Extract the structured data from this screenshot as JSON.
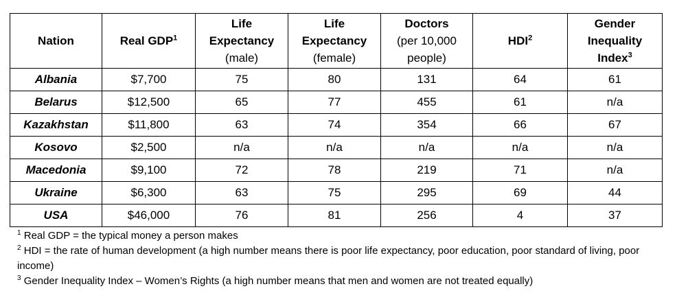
{
  "headers": {
    "nation": "Nation",
    "gdp": "Real GDP",
    "gdp_sup": "1",
    "life_male": [
      "Life",
      "Expectancy",
      "(male)"
    ],
    "life_female": [
      "Life",
      "Expectancy",
      "(female)"
    ],
    "doctors": [
      "Doctors",
      "(per 10,000",
      "people)"
    ],
    "hdi": "HDI",
    "hdi_sup": "2",
    "gii": [
      "Gender",
      "Inequality",
      "Index"
    ],
    "gii_sup": "3"
  },
  "rows": [
    {
      "nation": "Albania",
      "gdp": "$7,700",
      "life_male": "75",
      "life_female": "80",
      "doctors": "131",
      "hdi": "64",
      "gii": "61"
    },
    {
      "nation": "Belarus",
      "gdp": "$12,500",
      "life_male": "65",
      "life_female": "77",
      "doctors": "455",
      "hdi": "61",
      "gii": "n/a"
    },
    {
      "nation": "Kazakhstan",
      "gdp": "$11,800",
      "life_male": "63",
      "life_female": "74",
      "doctors": "354",
      "hdi": "66",
      "gii": "67"
    },
    {
      "nation": "Kosovo",
      "gdp": "$2,500",
      "life_male": "n/a",
      "life_female": "n/a",
      "doctors": "n/a",
      "hdi": "n/a",
      "gii": "n/a"
    },
    {
      "nation": "Macedonia",
      "gdp": "$9,100",
      "life_male": "72",
      "life_female": "78",
      "doctors": "219",
      "hdi": "71",
      "gii": "n/a"
    },
    {
      "nation": "Ukraine",
      "gdp": "$6,300",
      "life_male": "63",
      "life_female": "75",
      "doctors": "295",
      "hdi": "69",
      "gii": "44"
    },
    {
      "nation": "USA",
      "gdp": "$46,000",
      "life_male": "76",
      "life_female": "81",
      "doctors": "256",
      "hdi": "4",
      "gii": "37"
    }
  ],
  "footnotes": [
    {
      "num": "1",
      "text": " Real GDP = the typical money a person makes"
    },
    {
      "num": "2",
      "text": " HDI = the rate of human development (a high number means there is poor life expectancy, poor education, poor standard of living, poor income)"
    },
    {
      "num": "3",
      "text": " Gender Inequality Index – Women’s Rights (a high number means that men and women are not treated equally)"
    }
  ]
}
